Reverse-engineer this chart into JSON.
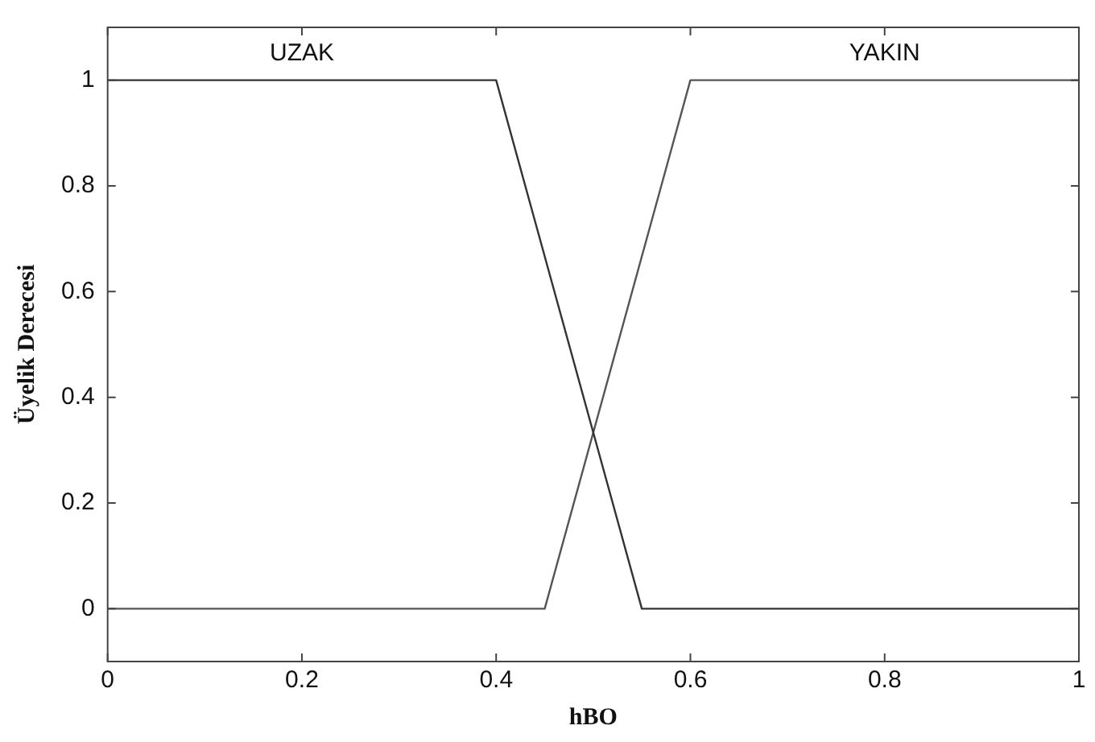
{
  "chart_data": {
    "type": "line",
    "xlabel": "hBO",
    "ylabel": "Üyelik Derecesi",
    "xlim": [
      0,
      1
    ],
    "xticks": [
      0,
      0.2,
      0.4,
      0.6,
      0.8,
      1
    ],
    "ylim": [
      -0.1,
      1.1
    ],
    "yticks": [
      0,
      0.2,
      0.4,
      0.6,
      0.8,
      1
    ],
    "grid": false,
    "legend": false,
    "marker": "none",
    "line_style": "solid",
    "series": [
      {
        "name": "UZAK",
        "color": "#333333",
        "x": [
          0,
          0.4,
          0.55,
          1
        ],
        "values": [
          1,
          1,
          0,
          0
        ]
      },
      {
        "name": "YAKIN",
        "color": "#555555",
        "x": [
          0,
          0.45,
          0.6,
          1
        ],
        "values": [
          0,
          0,
          1,
          1
        ]
      }
    ]
  }
}
